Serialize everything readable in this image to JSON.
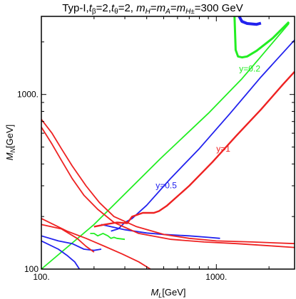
{
  "chart_data": {
    "type": "line",
    "title": {
      "prefix": "Typ-I,",
      "tb_sym": "t",
      "tb_sub": "β",
      "tb_val": "=2,",
      "tt_sym": "t",
      "tt_sub": "θ",
      "tt_val": "=2,",
      "mh_sym": "m",
      "mh_sub": "H",
      "ma_eq": "=",
      "ma_sym": "m",
      "ma_sub": "A",
      "mhp_eq": "=",
      "mhp_sym": "m",
      "mhp_sub": "H±",
      "suffix": "=300 GeV"
    },
    "xlabel": {
      "sym": "M",
      "sub": "L",
      "unit": "[GeV]"
    },
    "ylabel": {
      "sym": "M",
      "sub": "N",
      "unit": "[GeV]"
    },
    "x_scale": "log",
    "y_scale": "log",
    "xlim": [
      100,
      2800
    ],
    "ylim": [
      100,
      2800
    ],
    "x_ticks": [
      {
        "value": 100,
        "label": "100."
      },
      {
        "value": 1000,
        "label": "1000."
      }
    ],
    "y_ticks": [
      {
        "value": 100,
        "label": "100"
      },
      {
        "value": 1000,
        "label": "1000."
      }
    ],
    "colors": {
      "y=0.2": "#22ee22",
      "y=0.5": "#2222ee",
      "y=1": "#ee2222"
    },
    "series": [
      {
        "name": "y=0.2",
        "color": "#22ee22",
        "label_at": [
          1350,
          1350
        ],
        "segments": [
          [
            [
              100,
              100
            ],
            [
              200,
              180
            ],
            [
              480,
              430
            ],
            [
              900,
              780
            ],
            [
              1400,
              1230
            ],
            [
              1800,
              1650
            ],
            [
              2600,
              2550
            ]
          ],
          [
            [
              300,
              148
            ],
            [
              270,
              150
            ],
            [
              260,
              152
            ],
            [
              250,
              150
            ],
            [
              240,
              155
            ],
            [
              225,
              160
            ],
            [
              210,
              155
            ],
            [
              200,
              160
            ],
            [
              190,
              160
            ]
          ],
          [
            [
              1270,
              2800
            ],
            [
              1290,
              1800
            ],
            [
              1330,
              1650
            ],
            [
              1400,
              1630
            ],
            [
              1500,
              1650
            ],
            [
              1700,
              1780
            ],
            [
              2100,
              2100
            ],
            [
              2600,
              2600
            ]
          ]
        ]
      },
      {
        "name": "y=0.5",
        "color": "#2222ee",
        "label_at": [
          450,
          290
        ],
        "segments": [
          [
            [
              100,
              155
            ],
            [
              125,
              145
            ],
            [
              150,
              140
            ],
            [
              175,
              130
            ],
            [
              200,
              128
            ],
            [
              220,
              130
            ]
          ],
          [
            [
              100,
              145
            ],
            [
              125,
              130
            ],
            [
              140,
              120
            ],
            [
              155,
              110
            ],
            [
              165,
              100
            ]
          ],
          [
            [
              220,
              180
            ],
            [
              250,
              175
            ],
            [
              300,
              168
            ],
            [
              400,
              161
            ],
            [
              500,
              158
            ],
            [
              700,
              155
            ],
            [
              900,
              152
            ],
            [
              1050,
              150
            ]
          ],
          [
            [
              250,
              165
            ],
            [
              275,
              170
            ],
            [
              300,
              185
            ],
            [
              330,
              195
            ],
            [
              400,
              232
            ],
            [
              550,
              332
            ],
            [
              800,
              490
            ],
            [
              1200,
              780
            ],
            [
              1800,
              1260
            ],
            [
              2800,
              2050
            ]
          ],
          [
            [
              1350,
              2800
            ],
            [
              1400,
              2620
            ],
            [
              1500,
              2550
            ],
            [
              1700,
              2520
            ],
            [
              1800,
              2560
            ]
          ]
        ]
      },
      {
        "name": "y=1",
        "color": "#ee2222",
        "label_at": [
          1000,
          470
        ],
        "segments": [
          [
            [
              100,
              720
            ],
            [
              115,
              600
            ],
            [
              130,
              490
            ],
            [
              150,
              390
            ],
            [
              180,
              300
            ],
            [
              215,
              240
            ],
            [
              260,
              200
            ],
            [
              350,
              175
            ],
            [
              500,
              158
            ],
            [
              700,
              150
            ],
            [
              1000,
              145
            ],
            [
              1600,
              143
            ],
            [
              2800,
              140
            ]
          ],
          [
            [
              100,
              650
            ],
            [
              115,
              520
            ],
            [
              130,
              420
            ],
            [
              150,
              330
            ],
            [
              175,
              265
            ],
            [
              210,
              220
            ],
            [
              260,
              185
            ],
            [
              360,
              160
            ],
            [
              550,
              148
            ],
            [
              850,
              143
            ],
            [
              1300,
              140
            ],
            [
              2000,
              136
            ],
            [
              2800,
              133
            ]
          ],
          [
            [
              100,
              180
            ],
            [
              130,
              170
            ],
            [
              160,
              150
            ],
            [
              180,
              135
            ],
            [
              200,
              125
            ]
          ],
          [
            [
              100,
              195
            ],
            [
              140,
              165
            ],
            [
              180,
              150
            ],
            [
              230,
              135
            ],
            [
              290,
              122
            ],
            [
              360,
              110
            ],
            [
              420,
              100
            ]
          ],
          [
            [
              200,
              175
            ],
            [
              230,
              180
            ],
            [
              270,
              185
            ],
            [
              310,
              183
            ],
            [
              330,
              200
            ],
            [
              380,
              210
            ],
            [
              440,
              210
            ],
            [
              470,
              215
            ],
            [
              520,
              230
            ],
            [
              700,
              300
            ],
            [
              950,
              410
            ],
            [
              1300,
              580
            ],
            [
              1800,
              820
            ],
            [
              2400,
              1140
            ],
            [
              2800,
              1350
            ]
          ]
        ]
      }
    ]
  }
}
